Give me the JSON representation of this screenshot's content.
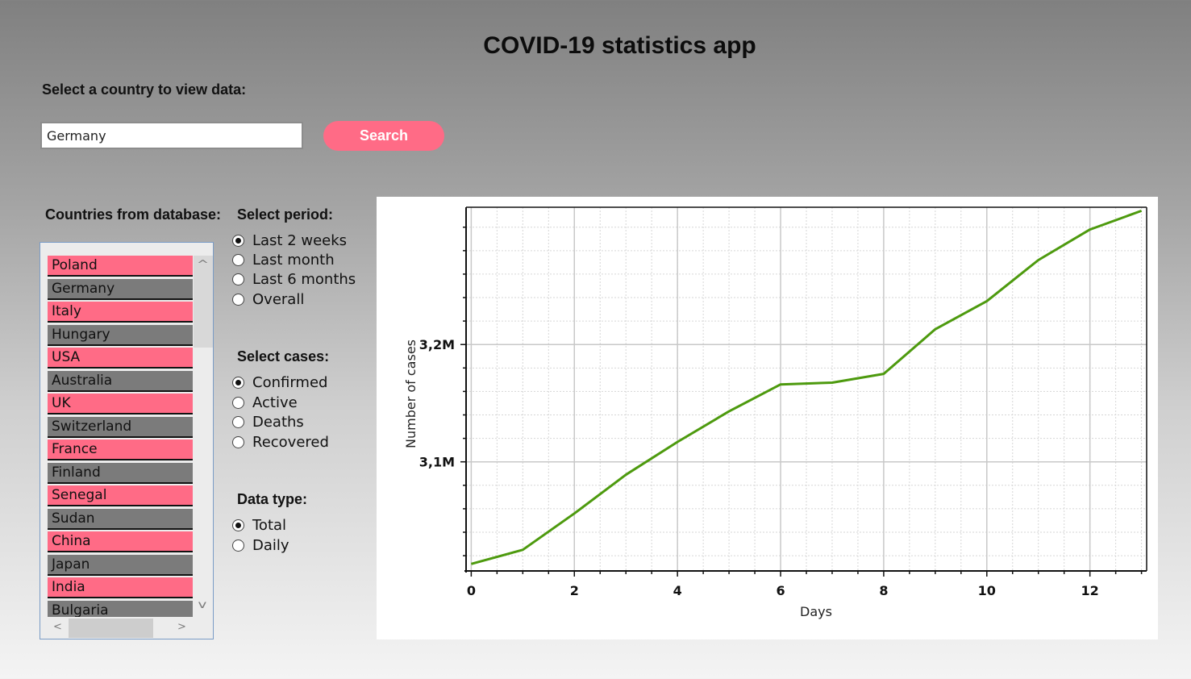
{
  "app": {
    "title": "COVID-19 statistics app"
  },
  "search": {
    "label": "Select a country to view data:",
    "value": "Germany",
    "button_label": "Search"
  },
  "countries": {
    "label": "Countries from database:",
    "items": [
      "Poland",
      "Germany",
      "Italy",
      "Hungary",
      "USA",
      "Australia",
      "UK",
      "Switzerland",
      "France",
      "Finland",
      "Senegal",
      "Sudan",
      "China",
      "Japan",
      "India",
      "Bulgaria"
    ],
    "scroll_up": "^",
    "scroll_down": "v",
    "scroll_left": "<",
    "scroll_right": ">"
  },
  "period": {
    "label": "Select period:",
    "options": [
      "Last 2 weeks",
      "Last month",
      "Last 6 months",
      "Overall"
    ],
    "selected": 0
  },
  "cases": {
    "label": "Select cases:",
    "options": [
      "Confirmed",
      "Active",
      "Deaths",
      "Recovered"
    ],
    "selected": 0
  },
  "data_type": {
    "label": "Data type:",
    "options": [
      "Total",
      "Daily"
    ],
    "selected": 0
  },
  "colors": {
    "accent": "#ff6b86",
    "list_gray": "#7b7b7b",
    "line": "#4d9a0e"
  },
  "chart_data": {
    "type": "line",
    "xlabel": "Days",
    "ylabel": "Number of cases",
    "x": [
      0,
      1,
      2,
      3,
      4,
      5,
      6,
      7,
      8,
      9,
      10,
      11,
      12,
      13
    ],
    "series": [
      {
        "name": "Confirmed",
        "values": [
          3013000,
          3025000,
          3056000,
          3089000,
          3117000,
          3143000,
          3166000,
          3167500,
          3175000,
          3213000,
          3237000,
          3272000,
          3298000,
          3314000
        ]
      }
    ],
    "xlim": [
      -0.1,
      13.1
    ],
    "ylim": [
      3007000,
      3317000
    ],
    "x_ticks": [
      0,
      2,
      4,
      6,
      8,
      10,
      12
    ],
    "x_tick_labels": [
      "0",
      "2",
      "4",
      "6",
      "8",
      "10",
      "12"
    ],
    "y_ticks": [
      3100000,
      3200000
    ],
    "y_tick_labels": [
      "3,1M",
      "3,2M"
    ],
    "grid": true
  }
}
